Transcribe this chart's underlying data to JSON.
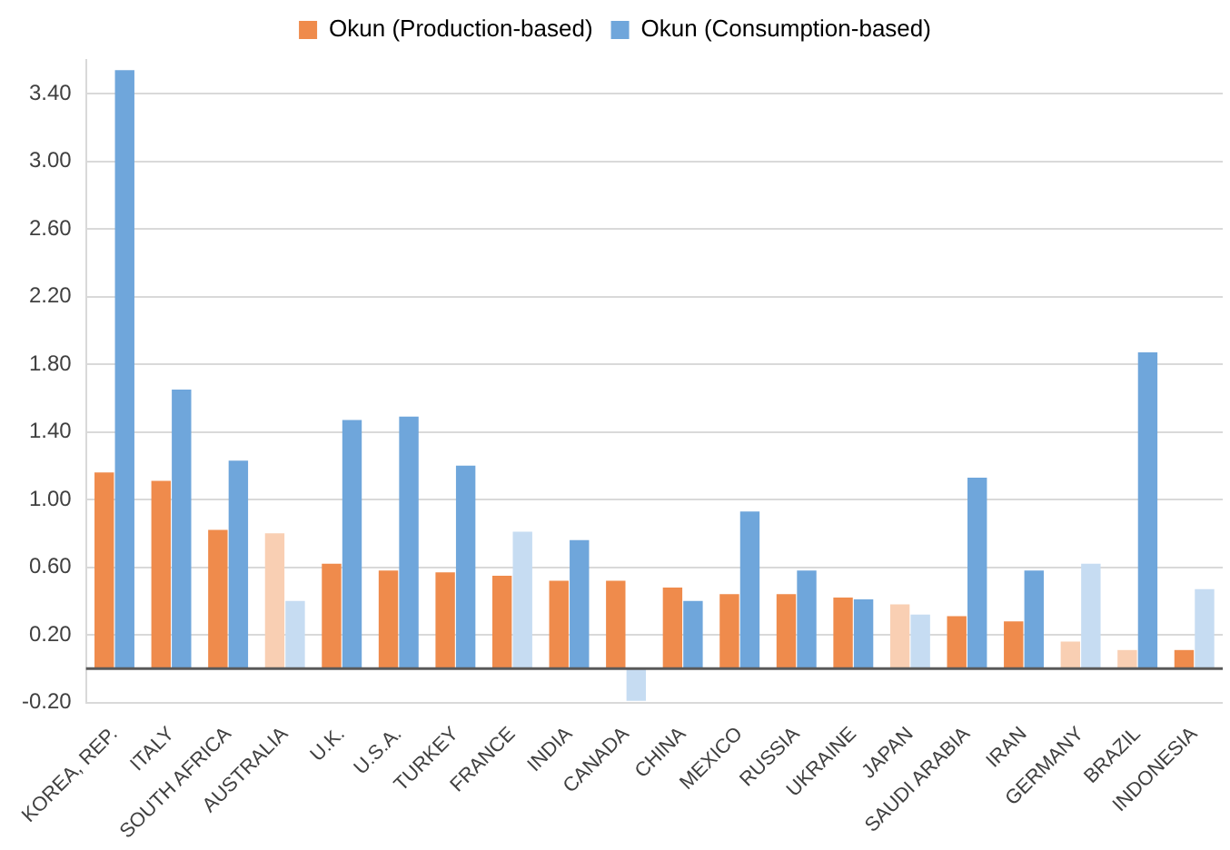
{
  "chart_data": {
    "type": "bar",
    "categories": [
      "KOREA, REP.",
      "ITALY",
      "SOUTH AFRICA",
      "AUSTRALIA",
      "U.K.",
      "U.S.A.",
      "TURKEY",
      "FRANCE",
      "INDIA",
      "CANADA",
      "CHINA",
      "MEXICO",
      "RUSSIA",
      "UKRAINE",
      "JAPAN",
      "SAUDI ARABIA",
      "IRAN",
      "GERMANY",
      "BRAZIL",
      "INDONESIA"
    ],
    "series": [
      {
        "name": "Okun (Production-based)",
        "color": "#ef8b4c",
        "values": [
          1.16,
          1.11,
          0.82,
          0.8,
          0.62,
          0.58,
          0.57,
          0.55,
          0.52,
          0.52,
          0.48,
          0.44,
          0.44,
          0.42,
          0.38,
          0.31,
          0.28,
          0.16,
          0.11,
          0.11
        ],
        "colors": [
          "#ef8b4c",
          "#ef8b4c",
          "#ef8b4c",
          "#f9cfb3",
          "#ef8b4c",
          "#ef8b4c",
          "#ef8b4c",
          "#ef8b4c",
          "#ef8b4c",
          "#ef8b4c",
          "#ef8b4c",
          "#ef8b4c",
          "#ef8b4c",
          "#ef8b4c",
          "#f9cfb3",
          "#ef8b4c",
          "#ef8b4c",
          "#f9cfb3",
          "#f9cfb3",
          "#ef8b4c"
        ]
      },
      {
        "name": "Okun (Consumption-based)",
        "color": "#6fa6db",
        "values": [
          3.54,
          1.65,
          1.23,
          0.4,
          1.47,
          1.49,
          1.2,
          0.81,
          0.76,
          -0.19,
          0.4,
          0.93,
          0.58,
          0.41,
          0.32,
          1.13,
          0.58,
          0.62,
          1.87,
          0.47
        ],
        "colors": [
          "#6fa6db",
          "#6fa6db",
          "#6fa6db",
          "#c6dcf2",
          "#6fa6db",
          "#6fa6db",
          "#6fa6db",
          "#c6dcf2",
          "#6fa6db",
          "#c6dcf2",
          "#6fa6db",
          "#6fa6db",
          "#6fa6db",
          "#6fa6db",
          "#c6dcf2",
          "#6fa6db",
          "#6fa6db",
          "#c6dcf2",
          "#6fa6db",
          "#c6dcf2"
        ]
      }
    ],
    "ylim": [
      -0.2,
      3.6
    ],
    "yticks": [
      {
        "value": -0.2,
        "label": "-0.20"
      },
      {
        "value": 0.2,
        "label": "0.20"
      },
      {
        "value": 0.6,
        "label": "0.60"
      },
      {
        "value": 1.0,
        "label": "1.00"
      },
      {
        "value": 1.4,
        "label": "1.40"
      },
      {
        "value": 1.8,
        "label": "1.80"
      },
      {
        "value": 2.2,
        "label": "2.20"
      },
      {
        "value": 2.6,
        "label": "2.60"
      },
      {
        "value": 3.0,
        "label": "3.00"
      },
      {
        "value": 3.4,
        "label": "3.40"
      }
    ],
    "grid": "y",
    "legend": "top"
  }
}
